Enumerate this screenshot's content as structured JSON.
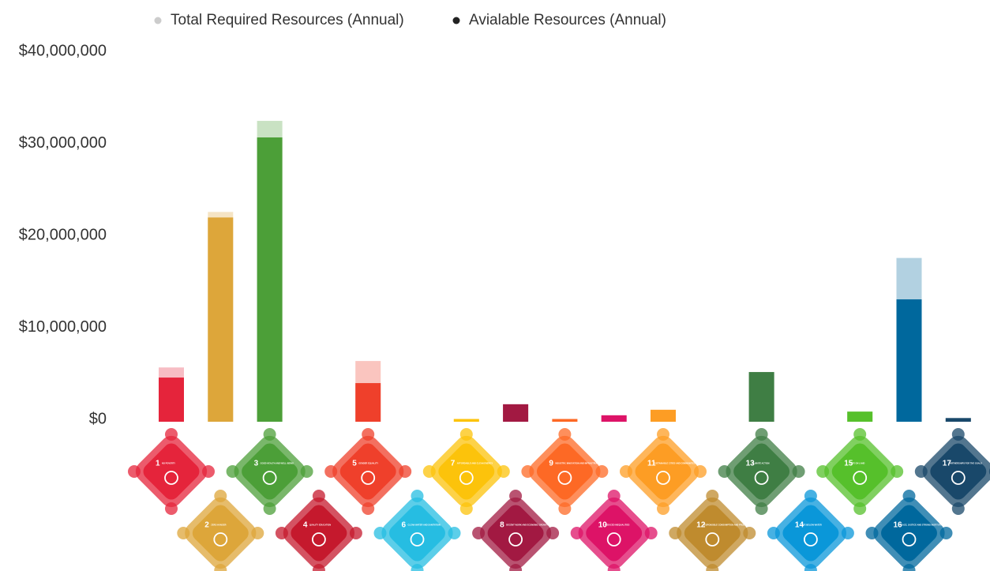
{
  "chart_data": {
    "type": "overlap_bar",
    "legend_position": "top",
    "categories": [
      "NO POVERTY",
      "ZERO HUNGER",
      "GOOD HEALTH AND WELL-BEING",
      "QUALITY EDUCATION",
      "GENDER EQUALITY",
      "CLEAN WATER AND SANITATION",
      "AFFORDABLE AND CLEAN ENERGY",
      "DECENT WORK AND ECONOMIC GROWTH",
      "INDUSTRY, INNOVATION AND INFRASTRUCTURE",
      "REDUCED INEQUALITIES",
      "SUSTAINABLE CITIES AND COMMUNITIES",
      "RESPONSIBLE CONSUMPTION AND PRODUCTION",
      "CLIMATE ACTION",
      "LIFE BELOW WATER",
      "LIFE ON LAND",
      "PEACE, JUSTICE AND STRONG INSTITUTIONS",
      "PARTNERSHIPS FOR THE GOALS"
    ],
    "goal_numbers": [
      1,
      2,
      3,
      4,
      5,
      6,
      7,
      8,
      9,
      10,
      11,
      12,
      13,
      14,
      15,
      16,
      17
    ],
    "bar_colors": [
      "#e5243b",
      "#dda63a",
      "#4c9f38",
      "#c5192d",
      "#ef402b",
      "#26bde2",
      "#fcc30b",
      "#a21942",
      "#fd6925",
      "#dd1367",
      "#fd9d24",
      "#bf8b2e",
      "#3f7e44",
      "#0a97d9",
      "#56c02b",
      "#00689d",
      "#19486a"
    ],
    "series": [
      {
        "name": "Total Required Resources (Annual)",
        "color": "#cccccc",
        "opacity": 0.3,
        "values": [
          5900000,
          22800000,
          32700000,
          0,
          6600000,
          0,
          300000,
          1900000,
          300000,
          700000,
          1300000,
          0,
          5400000,
          0,
          1100000,
          17800000,
          400000
        ]
      },
      {
        "name": "Avialable Resources (Annual)",
        "color": "#222222",
        "opacity": 1,
        "values": [
          4800000,
          22200000,
          30900000,
          0,
          4200000,
          0,
          300000,
          1900000,
          300000,
          700000,
          1300000,
          0,
          5400000,
          0,
          1100000,
          13300000,
          400000
        ]
      }
    ],
    "ylim": [
      0,
      40000000
    ],
    "yticks": [
      {
        "value": 0,
        "label": "$0"
      },
      {
        "value": 10000000,
        "label": "$10,000,000"
      },
      {
        "value": 20000000,
        "label": "$20,000,000"
      },
      {
        "value": 30000000,
        "label": "$30,000,000"
      },
      {
        "value": 40000000,
        "label": "$40,000,000"
      }
    ],
    "grid": false
  }
}
